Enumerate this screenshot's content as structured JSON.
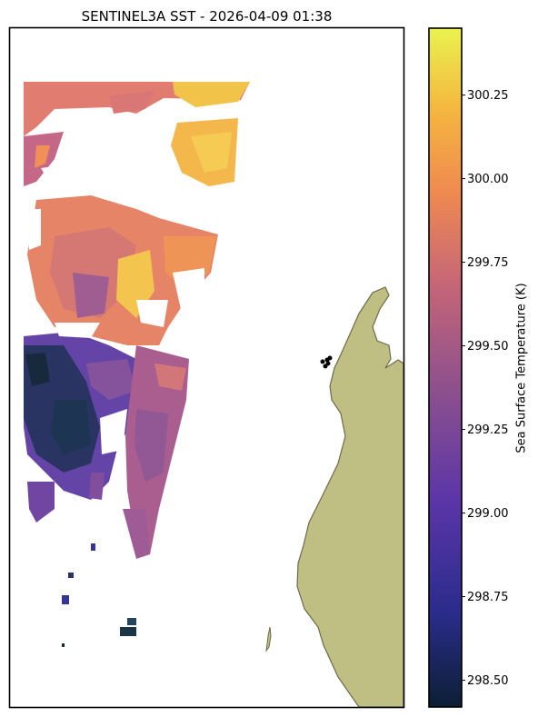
{
  "title": "SENTINEL3A SST - 2026-04-09 01:38",
  "colorbar": {
    "label": "Sea Surface Temperature (K)",
    "ticks": [
      "300.25",
      "300.00",
      "299.75",
      "299.50",
      "299.25",
      "299.00",
      "298.75",
      "298.50"
    ],
    "tick_values": [
      300.25,
      300.0,
      299.75,
      299.5,
      299.25,
      299.0,
      298.75,
      298.5
    ],
    "range": [
      298.42,
      300.45
    ],
    "colormap": [
      "#0b1f33",
      "#2b2c8c",
      "#5a35a8",
      "#8a4f8e",
      "#c56578",
      "#f08a50",
      "#f4b73f",
      "#eaf24f"
    ]
  },
  "colors": {
    "land": "#bfbf84",
    "land_edge": "#6b6b4a",
    "frame": "#000000",
    "markers": "#000000"
  }
}
